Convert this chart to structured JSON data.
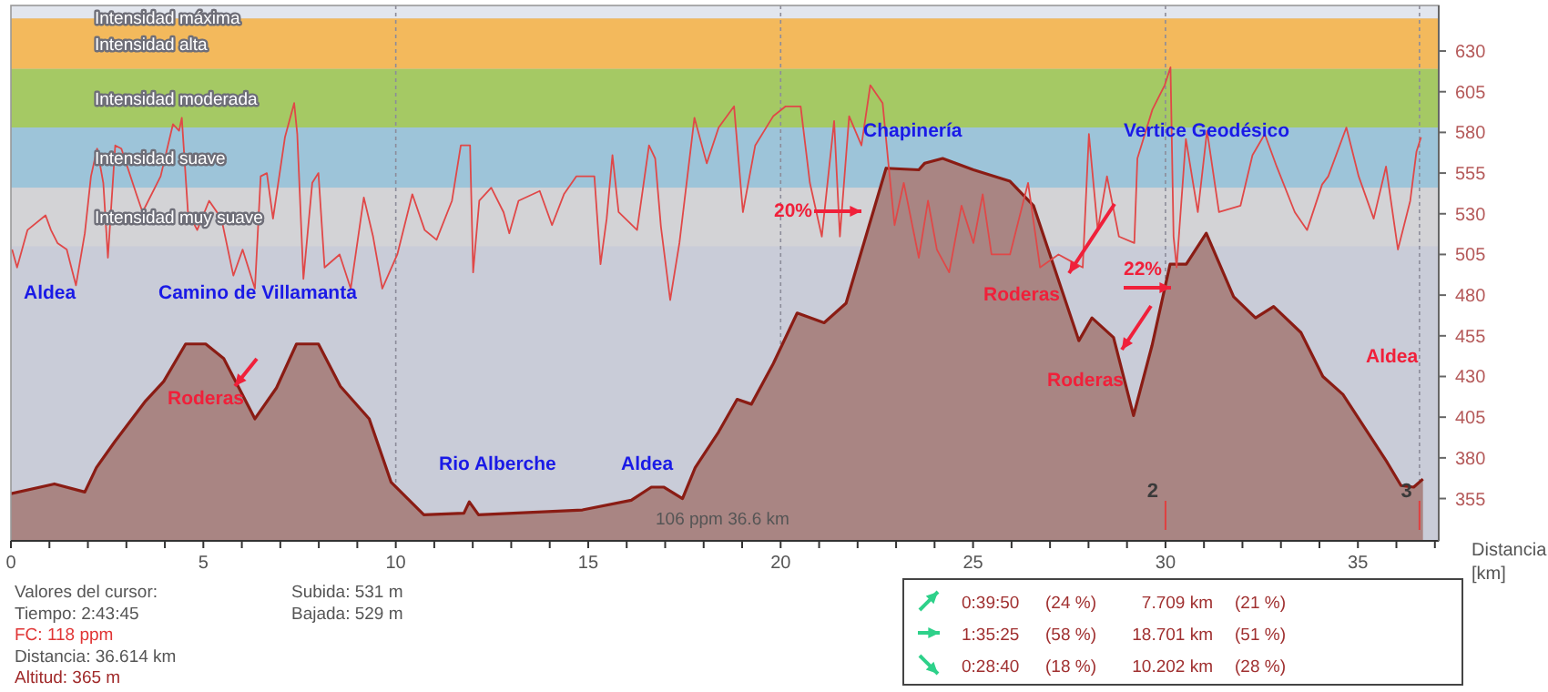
{
  "chart_data": {
    "type": "area",
    "xlabel": "Distancia [km]",
    "xlim": [
      0,
      37.1
    ],
    "xticks": [
      0,
      {
        "value": 1,
        "label": null
      },
      {
        "value": 2,
        "label": null
      },
      {
        "value": 3,
        "label": null
      },
      {
        "value": 4,
        "label": null
      },
      5,
      {
        "value": 6,
        "label": null
      },
      {
        "value": 7,
        "label": null
      },
      {
        "value": 8,
        "label": null
      },
      {
        "value": 9,
        "label": null
      },
      10,
      {
        "value": 11,
        "label": null
      },
      {
        "value": 12,
        "label": null
      },
      {
        "value": 13,
        "label": null
      },
      {
        "value": 14,
        "label": null
      },
      15,
      {
        "value": 16,
        "label": null
      },
      {
        "value": 17,
        "label": null
      },
      {
        "value": 18,
        "label": null
      },
      {
        "value": 19,
        "label": null
      },
      20,
      {
        "value": 21,
        "label": null
      },
      {
        "value": 22,
        "label": null
      },
      {
        "value": 23,
        "label": null
      },
      {
        "value": 24,
        "label": null
      },
      25,
      {
        "value": 26,
        "label": null
      },
      {
        "value": 27,
        "label": null
      },
      {
        "value": 28,
        "label": null
      },
      {
        "value": 29,
        "label": null
      },
      30,
      {
        "value": 31,
        "label": null
      },
      {
        "value": 32,
        "label": null
      },
      {
        "value": 33,
        "label": null
      },
      {
        "value": 34,
        "label": null
      },
      35,
      {
        "value": 36,
        "label": null
      },
      {
        "value": 37,
        "label": null
      }
    ],
    "ylim": [
      329,
      658
    ],
    "yticks": [
      355,
      380,
      405,
      430,
      455,
      480,
      505,
      530,
      555,
      580,
      605,
      630
    ],
    "marker": "none",
    "bands": [
      {
        "axis": "y",
        "from": 650,
        "to": 658,
        "label": "Intensidad máxima",
        "color": "#e2e6ee"
      },
      {
        "axis": "y",
        "from": 619,
        "to": 650,
        "label": "Intensidad alta",
        "color": "#f3b95c"
      },
      {
        "axis": "y",
        "from": 583,
        "to": 619,
        "label": "Intensidad moderada",
        "color": "#a5c964"
      },
      {
        "axis": "y",
        "from": 546,
        "to": 583,
        "label": "Intensidad suave",
        "color": "#9dc4d9"
      },
      {
        "axis": "y",
        "from": 510,
        "to": 546,
        "label": "Intensidad muy suave",
        "color": "#d3d3d6"
      }
    ],
    "ref_lines": [
      {
        "axis": "x",
        "value": 10
      },
      {
        "axis": "x",
        "value": 20
      },
      {
        "axis": "x",
        "value": 30
      },
      {
        "axis": "x",
        "value": 36.6
      }
    ],
    "series": [
      {
        "color": "#a98583",
        "x": [
          0,
          1.13,
          1.92,
          2.22,
          2.7,
          3.5,
          3.97,
          4.54,
          5.06,
          5.53,
          6.34,
          6.9,
          7.42,
          7.99,
          8.56,
          9.31,
          9.88,
          10.73,
          11.77,
          11.91,
          12.15,
          14.85,
          16.12,
          16.64,
          16.97,
          17.45,
          17.78,
          18.39,
          18.87,
          19.24,
          19.81,
          20.43,
          21.13,
          21.7,
          22.74,
          23.59,
          23.74,
          24.21,
          25.01,
          25.96,
          26.57,
          27.75,
          28.09,
          28.65,
          29.17,
          29.65,
          30.12,
          30.54,
          31.06,
          31.77,
          32.34,
          32.81,
          33.52,
          34.09,
          34.61,
          35.74,
          36.12,
          36.45,
          36.69
        ],
        "values": [
          358,
          364,
          359,
          374,
          390,
          415,
          427,
          450,
          450,
          441,
          404,
          423,
          450,
          450,
          424,
          404,
          365,
          345,
          346,
          353,
          345,
          348,
          354,
          362,
          362,
          355,
          374,
          396,
          416,
          413,
          438,
          469,
          463,
          475,
          558,
          557,
          561,
          564,
          557,
          550,
          535,
          452,
          466,
          454,
          406,
          449,
          499,
          499,
          518,
          479,
          466,
          473,
          457,
          430,
          419,
          378,
          363,
          362,
          367
        ]
      },
      {
        "type": "line",
        "color": "#e04848",
        "x": [
          0.03,
          0.16,
          0.43,
          0.9,
          1.04,
          1.21,
          1.45,
          1.69,
          1.92,
          2.08,
          2.24,
          2.4,
          2.52,
          2.71,
          2.87,
          3.26,
          3.42,
          3.89,
          4.21,
          4.37,
          4.44,
          4.6,
          4.84,
          5.15,
          5.47,
          5.78,
          6.02,
          6.34,
          6.49,
          6.65,
          6.81,
          7.12,
          7.36,
          7.44,
          7.6,
          7.83,
          7.99,
          8.15,
          8.54,
          8.83,
          9.17,
          9.41,
          9.65,
          10.04,
          10.43,
          10.75,
          11.06,
          11.46,
          11.69,
          11.93,
          12.01,
          12.17,
          12.48,
          12.8,
          12.95,
          13.19,
          13.74,
          14.06,
          14.37,
          14.69,
          15.16,
          15.32,
          15.48,
          15.63,
          15.79,
          16.27,
          16.58,
          16.74,
          16.89,
          17.13,
          17.37,
          17.76,
          18.08,
          18.39,
          18.79,
          19.02,
          19.34,
          19.73,
          19.81,
          20.13,
          20.52,
          20.76,
          21.07,
          21.39,
          21.54,
          21.78,
          22.1,
          22.33,
          22.65,
          22.8,
          22.96,
          23.2,
          23.59,
          23.83,
          24.06,
          24.38,
          24.7,
          25.01,
          25.25,
          25.48,
          25.96,
          26.43,
          26.74,
          27.22,
          27.53,
          27.85,
          28.01,
          28.24,
          28.48,
          28.79,
          29.19,
          29.27,
          29.66,
          29.98,
          30.13,
          30.21,
          30.29,
          30.53,
          30.84,
          31.08,
          31.39,
          31.95,
          32.26,
          32.58,
          32.89,
          33.36,
          33.68,
          34.07,
          34.23,
          34.7,
          35.02,
          35.41,
          35.73,
          36.04,
          36.36,
          36.52,
          36.64
        ],
        "values": [
          508,
          497,
          520,
          529,
          520,
          512,
          508,
          486,
          518,
          553,
          570,
          549,
          503,
          572,
          570,
          542,
          531,
          553,
          585,
          581,
          589,
          531,
          520,
          538,
          527,
          492,
          508,
          484,
          553,
          555,
          527,
          577,
          598,
          579,
          490,
          549,
          555,
          497,
          505,
          484,
          540,
          516,
          484,
          505,
          542,
          520,
          514,
          538,
          572,
          572,
          494,
          538,
          546,
          531,
          518,
          538,
          544,
          523,
          542,
          553,
          553,
          499,
          527,
          566,
          531,
          520,
          572,
          564,
          522,
          477,
          512,
          589,
          561,
          583,
          596,
          531,
          572,
          587,
          590,
          596,
          596,
          549,
          516,
          587,
          516,
          590,
          572,
          609,
          598,
          561,
          523,
          549,
          503,
          538,
          508,
          494,
          535,
          512,
          542,
          505,
          505,
          549,
          497,
          505,
          501,
          497,
          579,
          520,
          553,
          516,
          512,
          564,
          594,
          609,
          620,
          516,
          497,
          576,
          531,
          581,
          531,
          535,
          566,
          579,
          559,
          531,
          520,
          548,
          553,
          583,
          553,
          527,
          559,
          508,
          538,
          568,
          577
        ]
      }
    ],
    "annotations": [
      "Valores del cursor:",
      "Tiempo: 2:43:45",
      "FC: 118 ppm",
      "Distancia: 36.614 km",
      "Altitud: 365 m",
      "Subida: 531 m",
      "Bajada: 529 m",
      "0:39:50",
      "(24 %)",
      "7.709 km",
      "(21 %)",
      "1:35:25",
      "(58 %)",
      "18.701 km",
      "(51 %)",
      "0:28:40",
      "(18 %)",
      "10.202 km",
      "(28 %)",
      "106 ppm 36.6 km",
      "Aldea",
      "Camino de Villamanta",
      "Rio Alberche",
      "Aldea",
      "Chapinería",
      "Vertice Geodésico",
      "Roderas",
      "20%",
      "Roderas",
      "22%",
      "Roderas",
      "Aldea",
      "2",
      "3"
    ]
  }
}
